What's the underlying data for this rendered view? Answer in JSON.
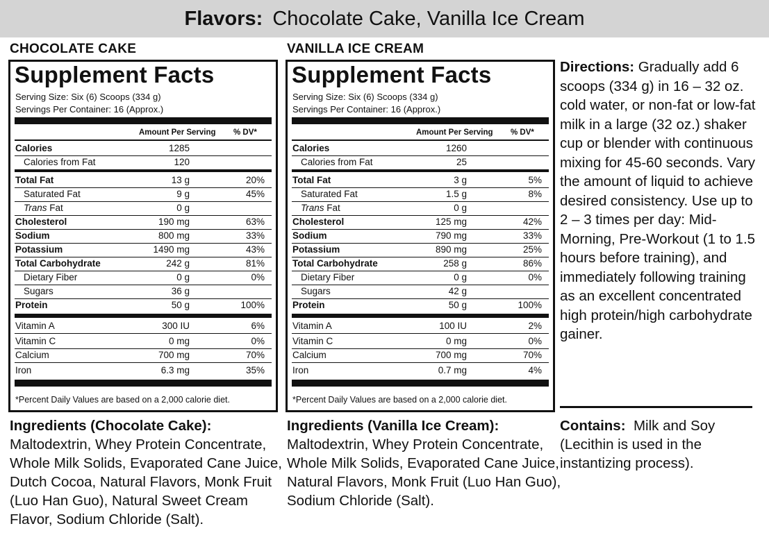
{
  "banner": {
    "label": "Flavors:",
    "value": "Chocolate Cake, Vanilla Ice Cream"
  },
  "panels": [
    {
      "flavor": "CHOCOLATE CAKE",
      "title": "Supplement Facts",
      "serving_size": "Serving Size: Six (6) Scoops (334 g)",
      "servings_per_container": "Servings Per Container: 16 (Approx.)",
      "col_amount": "Amount Per Serving",
      "col_dv": "% DV*",
      "rows": [
        {
          "name": "Calories",
          "amount": "1285",
          "dv": ""
        },
        {
          "name": "Calories from Fat",
          "amount": "120",
          "dv": ""
        },
        {
          "name": "Total Fat",
          "amount": "13 g",
          "dv": "20%"
        },
        {
          "name": "Saturated Fat",
          "amount": "9 g",
          "dv": "45%"
        },
        {
          "name": "Trans",
          "name_suffix": " Fat",
          "amount": "0 g",
          "dv": ""
        },
        {
          "name": "Cholesterol",
          "amount": "190 mg",
          "dv": "63%"
        },
        {
          "name": "Sodium",
          "amount": "800 mg",
          "dv": "33%"
        },
        {
          "name": "Potassium",
          "amount": "1490 mg",
          "dv": "43%"
        },
        {
          "name": "Total Carbohydrate",
          "amount": "242 g",
          "dv": "81%"
        },
        {
          "name": "Dietary Fiber",
          "amount": "0 g",
          "dv": "0%"
        },
        {
          "name": "Sugars",
          "amount": "36 g",
          "dv": ""
        },
        {
          "name": "Protein",
          "amount": "50 g",
          "dv": "100%"
        },
        {
          "name": "Vitamin A",
          "amount": "300 IU",
          "dv": "6%"
        },
        {
          "name": "Vitamin C",
          "amount": "0 mg",
          "dv": "0%"
        },
        {
          "name": "Calcium",
          "amount": "700 mg",
          "dv": "70%"
        },
        {
          "name": "Iron",
          "amount": "6.3 mg",
          "dv": "35%"
        }
      ],
      "footnote": "*Percent Daily Values are based on a 2,000 calorie diet.",
      "ingredients_heading": "Ingredients (Chocolate Cake):",
      "ingredients": "Maltodextrin, Whey Protein Concentrate, Whole Milk Solids, Evaporated Cane Juice, Dutch Cocoa, Natural Flavors, Monk Fruit (Luo Han Guo), Natural Sweet Cream Flavor, Sodium Chloride (Salt)."
    },
    {
      "flavor": "VANILLA ICE CREAM",
      "title": "Supplement Facts",
      "serving_size": "Serving Size: Six (6) Scoops (334 g)",
      "servings_per_container": "Servings Per Container: 16 (Approx.)",
      "col_amount": "Amount Per Serving",
      "col_dv": "% DV*",
      "rows": [
        {
          "name": "Calories",
          "amount": "1260",
          "dv": ""
        },
        {
          "name": "Calories from Fat",
          "amount": "25",
          "dv": ""
        },
        {
          "name": "Total Fat",
          "amount": "3 g",
          "dv": "5%"
        },
        {
          "name": "Saturated Fat",
          "amount": "1.5 g",
          "dv": "8%"
        },
        {
          "name": "Trans",
          "name_suffix": " Fat",
          "amount": "0 g",
          "dv": ""
        },
        {
          "name": "Cholesterol",
          "amount": "125 mg",
          "dv": "42%"
        },
        {
          "name": "Sodium",
          "amount": "790 mg",
          "dv": "33%"
        },
        {
          "name": "Potassium",
          "amount": "890 mg",
          "dv": "25%"
        },
        {
          "name": "Total Carbohydrate",
          "amount": "258 g",
          "dv": "86%"
        },
        {
          "name": "Dietary Fiber",
          "amount": "0 g",
          "dv": "0%"
        },
        {
          "name": "Sugars",
          "amount": "42 g",
          "dv": ""
        },
        {
          "name": "Protein",
          "amount": "50 g",
          "dv": "100%"
        },
        {
          "name": "Vitamin A",
          "amount": "100 IU",
          "dv": "2%"
        },
        {
          "name": "Vitamin C",
          "amount": "0 mg",
          "dv": "0%"
        },
        {
          "name": "Calcium",
          "amount": "700 mg",
          "dv": "70%"
        },
        {
          "name": "Iron",
          "amount": "0.7 mg",
          "dv": "4%"
        }
      ],
      "footnote": "*Percent Daily Values are based on a 2,000 calorie diet.",
      "ingredients_heading": "Ingredients (Vanilla Ice Cream):",
      "ingredients": "Maltodextrin, Whey Protein Concentrate, Whole Milk Solids, Evaporated Cane Juice, Natural Flavors, Monk Fruit (Luo Han Guo), Sodium Chloride (Salt)."
    }
  ],
  "directions": {
    "label": "Directions:",
    "text": "Gradually add 6 scoops (334 g) in 16 – 32 oz. cold water, or non-fat or low-fat milk in a large (32 oz.) shaker cup or blender with continuous mixing for 45-60 seconds.  Vary the amount of liquid to achieve desired consistency.  Use up to 2 – 3 times per day: Mid-Morning, Pre-Workout (1 to 1.5 hours before training), and immediately following training as an excellent concentrated high protein/high carbohydrate gainer."
  },
  "contains": {
    "label": "Contains:",
    "text": "Milk and Soy (Lecithin is used in the instantizing process)."
  }
}
